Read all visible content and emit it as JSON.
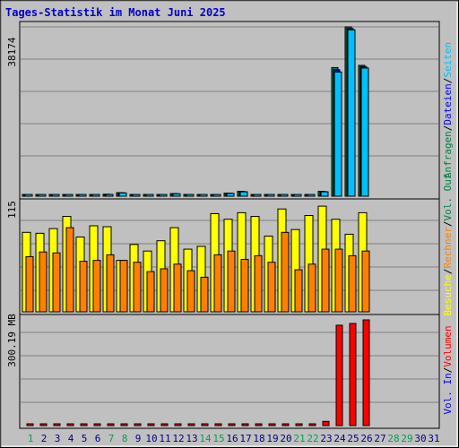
{
  "title": "Tages-Statistik im Monat Juni 2025",
  "colors": {
    "background": "#c0c0c0",
    "title": "#0000cc",
    "hits": "#008040",
    "files": "#0000ff",
    "pages": "#00c0ff",
    "visits": "#ffff00",
    "sites": "#ff8000",
    "kbytes": "#ff0000",
    "grid": "#808080",
    "weekday": "#000080",
    "weekend": "#00a050"
  },
  "y_labels": {
    "top": "38174",
    "middle": "115",
    "bottom": "300.19 MB"
  },
  "legend_right": {
    "top": [
      {
        "text": "Anfragen",
        "color": "#008040"
      },
      {
        "text": "Dateien",
        "color": "#0000ff"
      },
      {
        "text": "Seiten",
        "color": "#00c0ff"
      }
    ],
    "middle": [
      {
        "text": "Besuche",
        "color": "#ffff00"
      },
      {
        "text": "Rechner",
        "color": "#ff8000"
      },
      {
        "text": "Vol. Out",
        "color": "#008040"
      }
    ],
    "bottom": [
      {
        "text": "Vol. In",
        "color": "#0000ff"
      },
      {
        "text": "Volumen",
        "color": "#ff0000"
      }
    ]
  },
  "chart_data": [
    {
      "type": "bar",
      "title": "Tages-Statistik im Monat Juni 2025",
      "categories": [
        "1",
        "2",
        "3",
        "4",
        "5",
        "6",
        "7",
        "8",
        "9",
        "10",
        "11",
        "12",
        "13",
        "14",
        "15",
        "16",
        "17",
        "18",
        "19",
        "20",
        "21",
        "22",
        "23",
        "24",
        "25",
        "26",
        "27",
        "28",
        "29",
        "30",
        "31"
      ],
      "weekend_days": [
        1,
        7,
        8,
        14,
        15,
        21,
        22,
        28,
        29
      ],
      "ylim": [
        0,
        38174
      ],
      "series": [
        {
          "name": "Anfragen",
          "values": [
            150,
            150,
            400,
            300,
            300,
            250,
            450,
            800,
            150,
            150,
            150,
            600,
            200,
            300,
            350,
            700,
            1100,
            200,
            200,
            200,
            300,
            350,
            1100,
            29000,
            38174,
            29500,
            0,
            0,
            0,
            0,
            0
          ]
        },
        {
          "name": "Dateien",
          "values": [
            140,
            140,
            380,
            290,
            290,
            240,
            430,
            780,
            140,
            140,
            140,
            580,
            190,
            290,
            330,
            680,
            1050,
            190,
            190,
            190,
            290,
            330,
            1050,
            28500,
            37800,
            29200,
            0,
            0,
            0,
            0,
            0
          ]
        },
        {
          "name": "Seiten",
          "values": [
            120,
            120,
            350,
            280,
            270,
            220,
            400,
            750,
            120,
            120,
            120,
            550,
            170,
            260,
            300,
            650,
            1000,
            170,
            170,
            170,
            270,
            300,
            1000,
            28000,
            37500,
            28900,
            0,
            0,
            0,
            0,
            0
          ]
        }
      ]
    },
    {
      "type": "bar",
      "categories": [
        "1",
        "2",
        "3",
        "4",
        "5",
        "6",
        "7",
        "8",
        "9",
        "10",
        "11",
        "12",
        "13",
        "14",
        "15",
        "16",
        "17",
        "18",
        "19",
        "20",
        "21",
        "22",
        "23",
        "24",
        "25",
        "26",
        "27",
        "28",
        "29",
        "30",
        "31"
      ],
      "ylim": [
        0,
        115
      ],
      "series": [
        {
          "name": "Besuche",
          "values": [
            85,
            84,
            89,
            102,
            80,
            92,
            91,
            55,
            72,
            65,
            76,
            90,
            67,
            70,
            105,
            99,
            106,
            102,
            81,
            110,
            88,
            103,
            113,
            99,
            83,
            106,
            0,
            0,
            0,
            0,
            0
          ]
        },
        {
          "name": "Rechner",
          "values": [
            59,
            64,
            63,
            90,
            54,
            55,
            61,
            55,
            53,
            43,
            46,
            51,
            44,
            37,
            61,
            65,
            56,
            60,
            53,
            85,
            45,
            51,
            67,
            67,
            60,
            65,
            0,
            0,
            0,
            0,
            0
          ]
        }
      ]
    },
    {
      "type": "bar",
      "categories": [
        "1",
        "2",
        "3",
        "4",
        "5",
        "6",
        "7",
        "8",
        "9",
        "10",
        "11",
        "12",
        "13",
        "14",
        "15",
        "16",
        "17",
        "18",
        "19",
        "20",
        "21",
        "22",
        "23",
        "24",
        "25",
        "26",
        "27",
        "28",
        "29",
        "30",
        "31"
      ],
      "ylim": [
        0,
        300.19
      ],
      "ylabel": "MB",
      "series": [
        {
          "name": "Volumen",
          "values": [
            1.5,
            1.5,
            1.5,
            1.5,
            1.5,
            1.5,
            1.5,
            5,
            1.5,
            1.5,
            1.5,
            1.5,
            1.5,
            1.5,
            1.5,
            1.5,
            1.5,
            1.5,
            1.5,
            1.5,
            5,
            5,
            12,
            285,
            290,
            300.19,
            0,
            0,
            0,
            0,
            0
          ]
        }
      ]
    }
  ]
}
